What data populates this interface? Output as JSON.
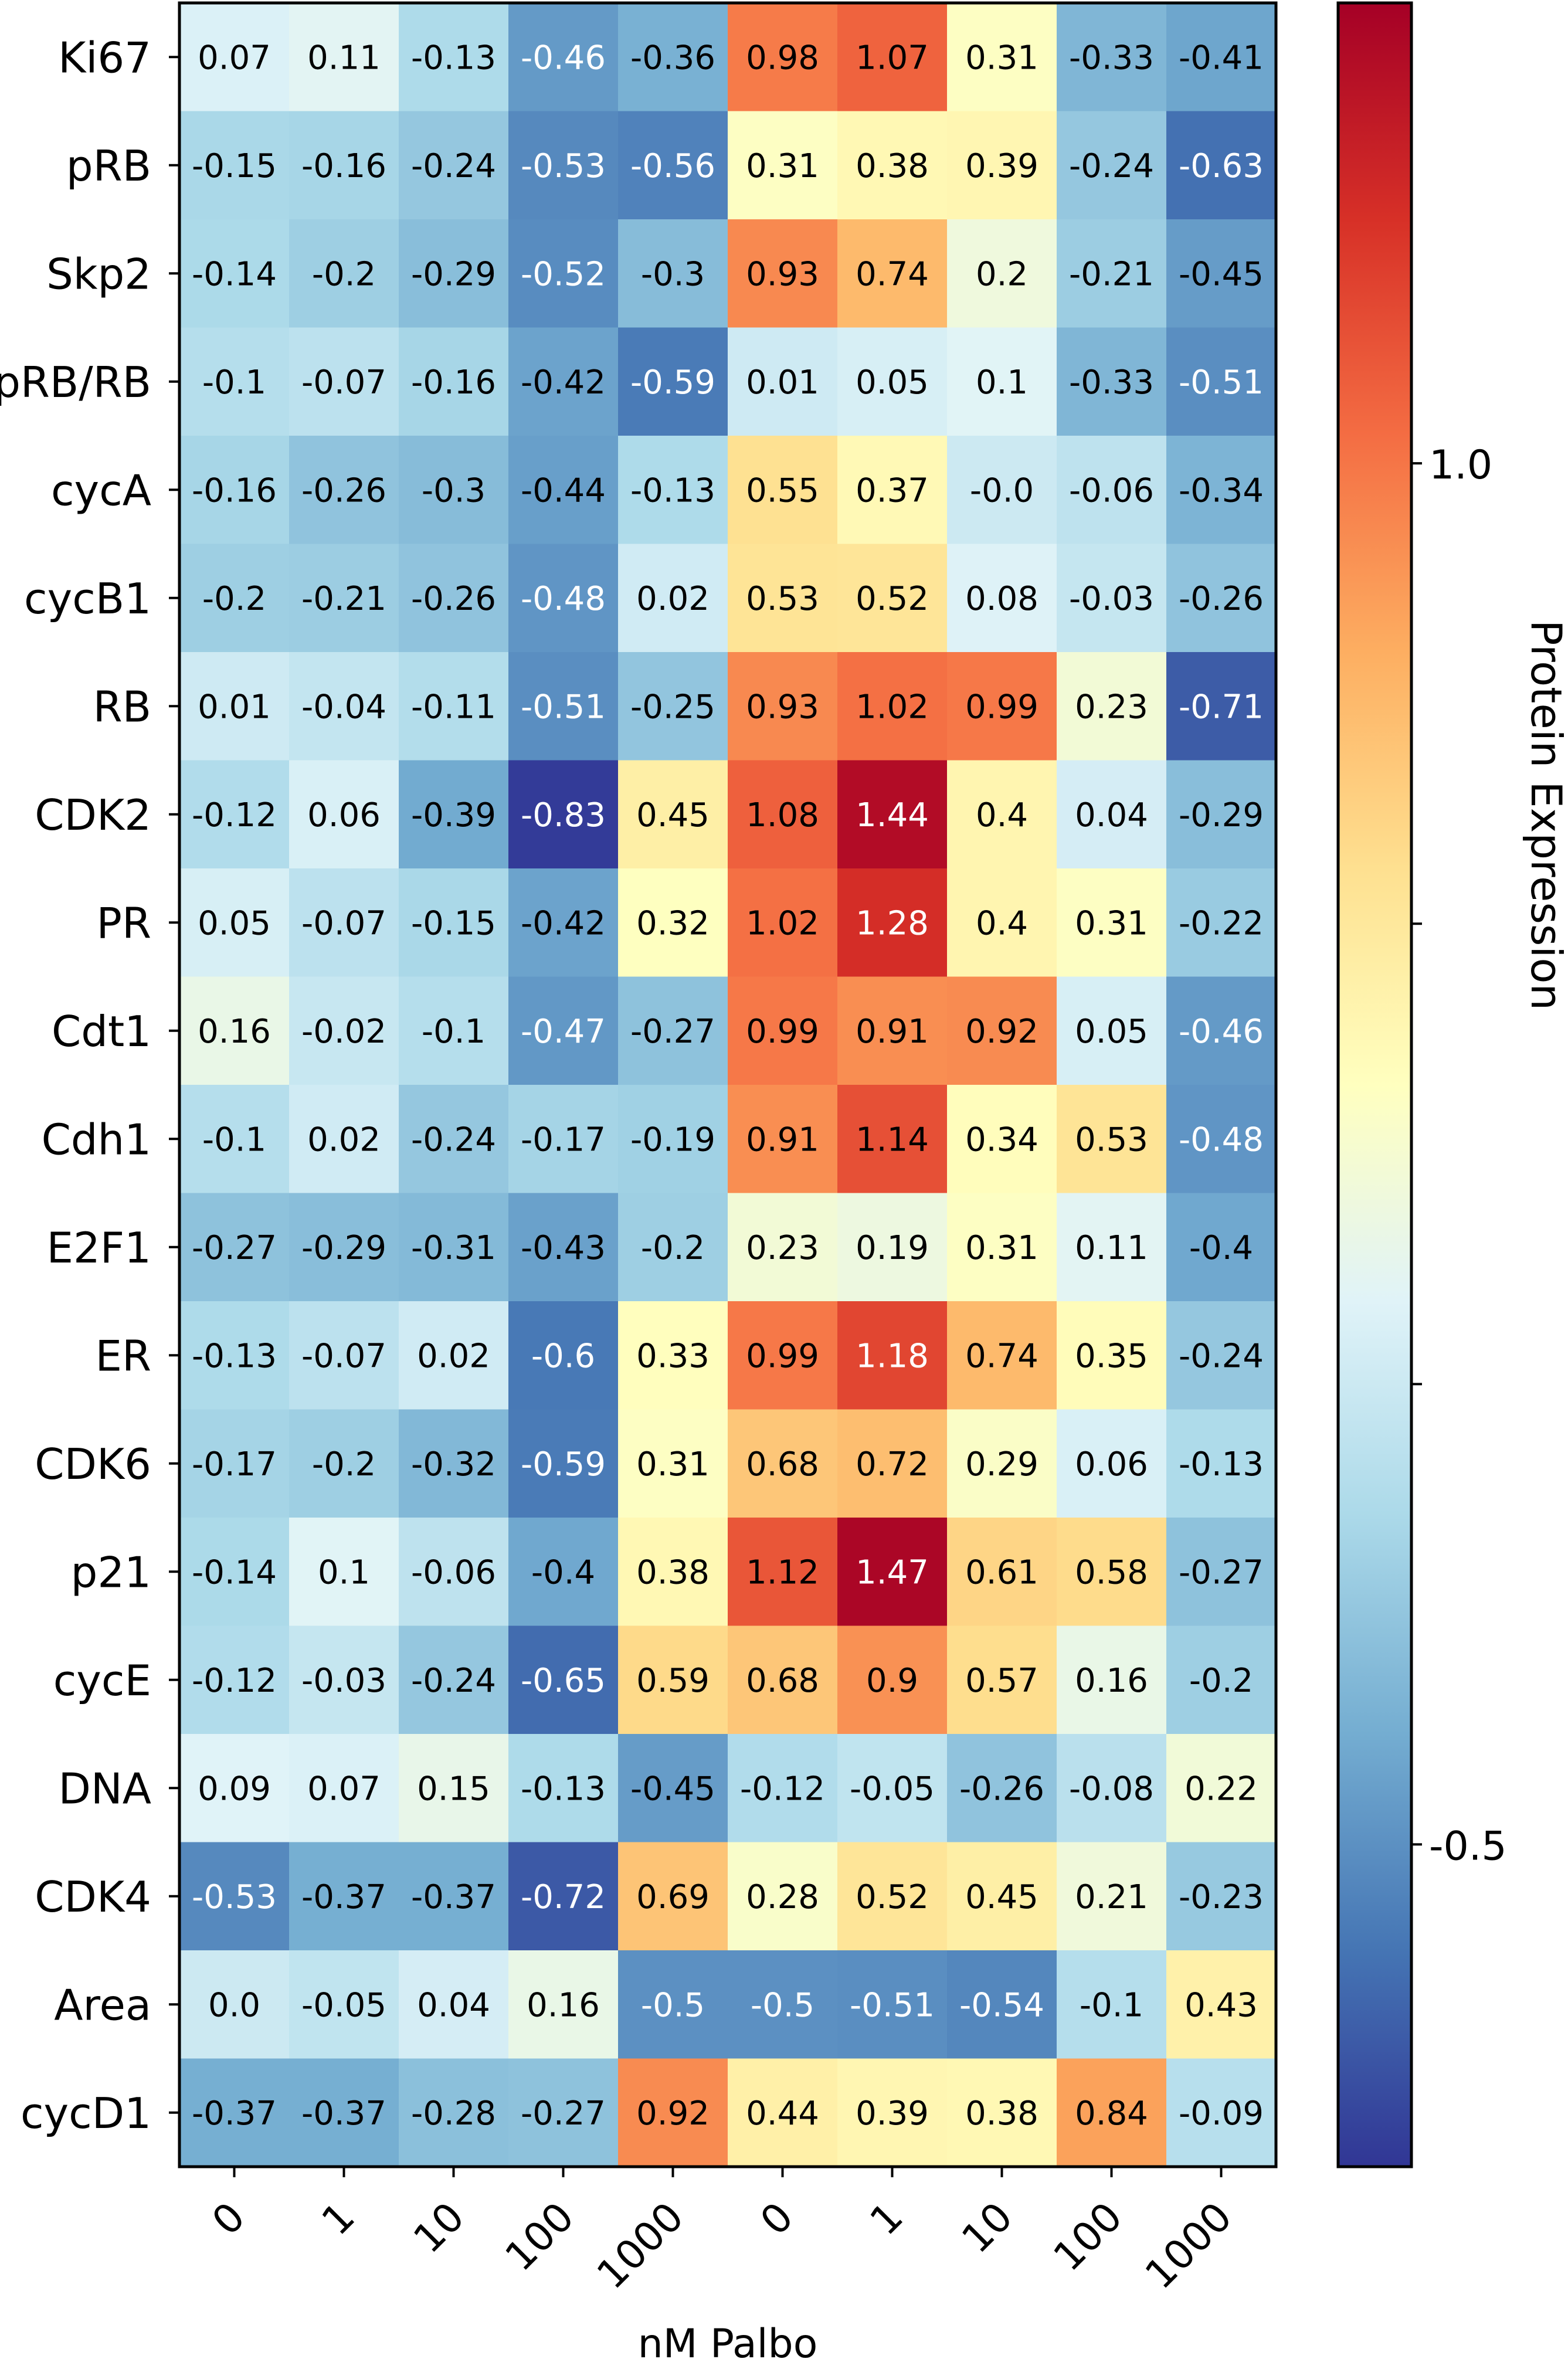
{
  "chart_data": {
    "type": "heatmap",
    "xlabel": "nM Palbo",
    "x_tick_labels": [
      "0",
      "1",
      "10",
      "100",
      "1000",
      "0",
      "1",
      "10",
      "100",
      "1000"
    ],
    "rows": [
      "Ki67",
      "pRB",
      "Skp2",
      "pRB/RB",
      "cycA",
      "cycB1",
      "RB",
      "CDK2",
      "PR",
      "Cdt1",
      "Cdh1",
      "E2F1",
      "ER",
      "CDK6",
      "p21",
      "cycE",
      "DNA",
      "CDK4",
      "Area",
      "cycD1"
    ],
    "values": [
      [
        "0.07",
        "0.11",
        "-0.13",
        "-0.46",
        "-0.36",
        "0.98",
        "1.07",
        "0.31",
        "-0.33",
        "-0.41"
      ],
      [
        "-0.15",
        "-0.16",
        "-0.24",
        "-0.53",
        "-0.56",
        "0.31",
        "0.38",
        "0.39",
        "-0.24",
        "-0.63"
      ],
      [
        "-0.14",
        "-0.2",
        "-0.29",
        "-0.52",
        "-0.3",
        "0.93",
        "0.74",
        "0.2",
        "-0.21",
        "-0.45"
      ],
      [
        "-0.1",
        "-0.07",
        "-0.16",
        "-0.42",
        "-0.59",
        "0.01",
        "0.05",
        "0.1",
        "-0.33",
        "-0.51"
      ],
      [
        "-0.16",
        "-0.26",
        "-0.3",
        "-0.44",
        "-0.13",
        "0.55",
        "0.37",
        "-0.0",
        "-0.06",
        "-0.34"
      ],
      [
        "-0.2",
        "-0.21",
        "-0.26",
        "-0.48",
        "0.02",
        "0.53",
        "0.52",
        "0.08",
        "-0.03",
        "-0.26"
      ],
      [
        "0.01",
        "-0.04",
        "-0.11",
        "-0.51",
        "-0.25",
        "0.93",
        "1.02",
        "0.99",
        "0.23",
        "-0.71"
      ],
      [
        "-0.12",
        "0.06",
        "-0.39",
        "-0.83",
        "0.45",
        "1.08",
        "1.44",
        "0.4",
        "0.04",
        "-0.29"
      ],
      [
        "0.05",
        "-0.07",
        "-0.15",
        "-0.42",
        "0.32",
        "1.02",
        "1.28",
        "0.4",
        "0.31",
        "-0.22"
      ],
      [
        "0.16",
        "-0.02",
        "-0.1",
        "-0.47",
        "-0.27",
        "0.99",
        "0.91",
        "0.92",
        "0.05",
        "-0.46"
      ],
      [
        "-0.1",
        "0.02",
        "-0.24",
        "-0.17",
        "-0.19",
        "0.91",
        "1.14",
        "0.34",
        "0.53",
        "-0.48"
      ],
      [
        "-0.27",
        "-0.29",
        "-0.31",
        "-0.43",
        "-0.2",
        "0.23",
        "0.19",
        "0.31",
        "0.11",
        "-0.4"
      ],
      [
        "-0.13",
        "-0.07",
        "0.02",
        "-0.6",
        "0.33",
        "0.99",
        "1.18",
        "0.74",
        "0.35",
        "-0.24"
      ],
      [
        "-0.17",
        "-0.2",
        "-0.32",
        "-0.59",
        "0.31",
        "0.68",
        "0.72",
        "0.29",
        "0.06",
        "-0.13"
      ],
      [
        "-0.14",
        "0.1",
        "-0.06",
        "-0.4",
        "0.38",
        "1.12",
        "1.47",
        "0.61",
        "0.58",
        "-0.27"
      ],
      [
        "-0.12",
        "-0.03",
        "-0.24",
        "-0.65",
        "0.59",
        "0.68",
        "0.9",
        "0.57",
        "0.16",
        "-0.2"
      ],
      [
        "0.09",
        "0.07",
        "0.15",
        "-0.13",
        "-0.45",
        "-0.12",
        "-0.05",
        "-0.26",
        "-0.08",
        "0.22"
      ],
      [
        "-0.53",
        "-0.37",
        "-0.37",
        "-0.72",
        "0.69",
        "0.28",
        "0.52",
        "0.45",
        "0.21",
        "-0.23"
      ],
      [
        "0.0",
        "-0.05",
        "0.04",
        "0.16",
        "-0.5",
        "-0.5",
        "-0.51",
        "-0.54",
        "-0.1",
        "0.43"
      ],
      [
        "-0.37",
        "-0.37",
        "-0.28",
        "-0.27",
        "0.92",
        "0.44",
        "0.39",
        "0.38",
        "0.84",
        "-0.09"
      ]
    ],
    "colorbar": {
      "label": "Protein Expression",
      "min": -0.85,
      "max": 1.5,
      "ticks": [
        {
          "value": 1.0,
          "label": "1.0"
        },
        {
          "value": 0.5,
          "label": ""
        },
        {
          "value": 0.0,
          "label": ""
        },
        {
          "value": -0.5,
          "label": "-0.5"
        }
      ],
      "colormap": "RdYlBu_r"
    },
    "colors": {
      "low": "#313695",
      "mid": "#ffffbf",
      "high": "#a50026"
    }
  }
}
